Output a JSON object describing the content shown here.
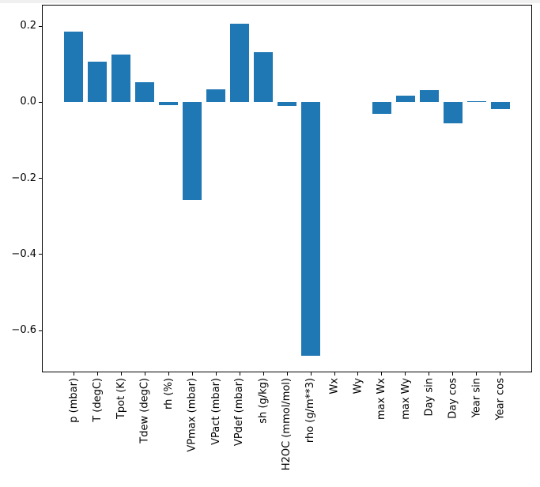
{
  "figure": {
    "background_color": "#ffffff",
    "bar_color": "#1f77b4",
    "axis_color": "#000000",
    "tick_label_color": "#000000",
    "top_edge_color": "#f0f0f0"
  },
  "chart_data": {
    "type": "bar",
    "title": "",
    "xlabel": "",
    "ylabel": "",
    "grid": false,
    "legend": null,
    "categories": [
      "p (mbar)",
      "T (degC)",
      "Tpot (K)",
      "Tdew (degC)",
      "rh (%)",
      "VPmax (mbar)",
      "VPact (mbar)",
      "VPdef (mbar)",
      "sh (g/kg)",
      "H2OC (mmol/mol)",
      "rho (g/m**3)",
      "Wx",
      "Wy",
      "max Wx",
      "max Wy",
      "Day sin",
      "Day cos",
      "Year sin",
      "Year cos"
    ],
    "values": [
      0.186,
      0.106,
      0.125,
      0.052,
      -0.008,
      -0.257,
      0.033,
      0.206,
      0.132,
      -0.01,
      -0.667,
      0.0,
      0.0,
      -0.031,
      0.017,
      0.032,
      -0.055,
      0.003,
      -0.019
    ],
    "yticks": [
      0.2,
      0.0,
      -0.2,
      -0.4,
      -0.6
    ],
    "ytick_labels": [
      "0.2",
      "0.0",
      "−0.2",
      "−0.4",
      "−0.6"
    ],
    "ylim": [
      -0.71,
      0.256
    ],
    "bar_rel_width": 0.8,
    "x_tick_rotation_deg": 90
  }
}
